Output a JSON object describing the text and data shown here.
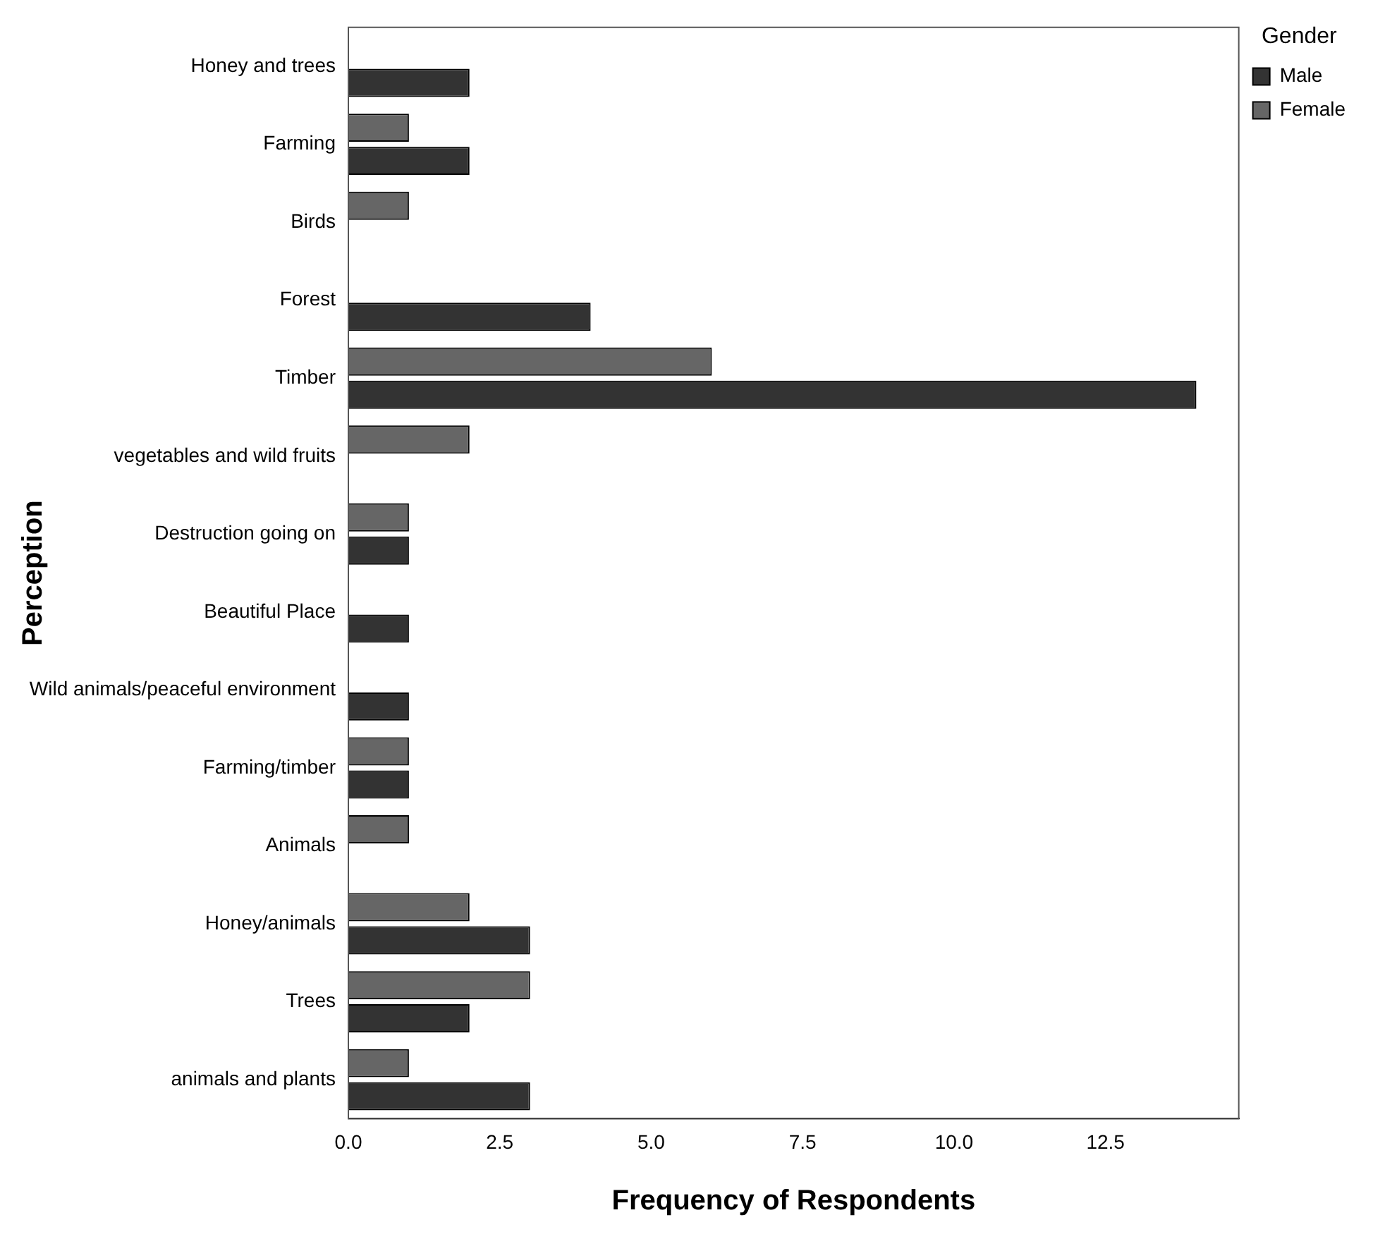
{
  "chart_data": {
    "type": "bar",
    "orientation": "horizontal",
    "xlabel": "Frequency of Respondents",
    "ylabel": "Perception",
    "legend_title": "Gender",
    "categories": [
      "Honey and trees",
      "Farming",
      "Birds",
      "Forest",
      "Timber",
      "vegetables and wild fruits",
      "Destruction going on",
      "Beautiful Place",
      "Wild animals/peaceful environment",
      "Farming/timber",
      "Animals",
      "Honey/animals",
      "Trees",
      "animals and plants"
    ],
    "series": [
      {
        "name": "Male",
        "color": "#333333",
        "values": [
          2,
          2,
          0,
          4,
          14,
          0,
          1,
          1,
          1,
          1,
          0,
          3,
          2,
          3
        ]
      },
      {
        "name": "Female",
        "color": "#666666",
        "values": [
          0,
          1,
          1,
          0,
          6,
          2,
          1,
          0,
          0,
          1,
          1,
          2,
          3,
          1
        ]
      }
    ],
    "xlim": [
      0,
      14.7
    ],
    "xticks": [
      {
        "value": 0,
        "label": "0.0"
      },
      {
        "value": 2.5,
        "label": "2.5"
      },
      {
        "value": 5,
        "label": "5.0"
      },
      {
        "value": 7.5,
        "label": "7.5"
      },
      {
        "value": 10,
        "label": "10.0"
      },
      {
        "value": 12.5,
        "label": "12.5"
      }
    ],
    "grid": false,
    "legend": "top right"
  }
}
